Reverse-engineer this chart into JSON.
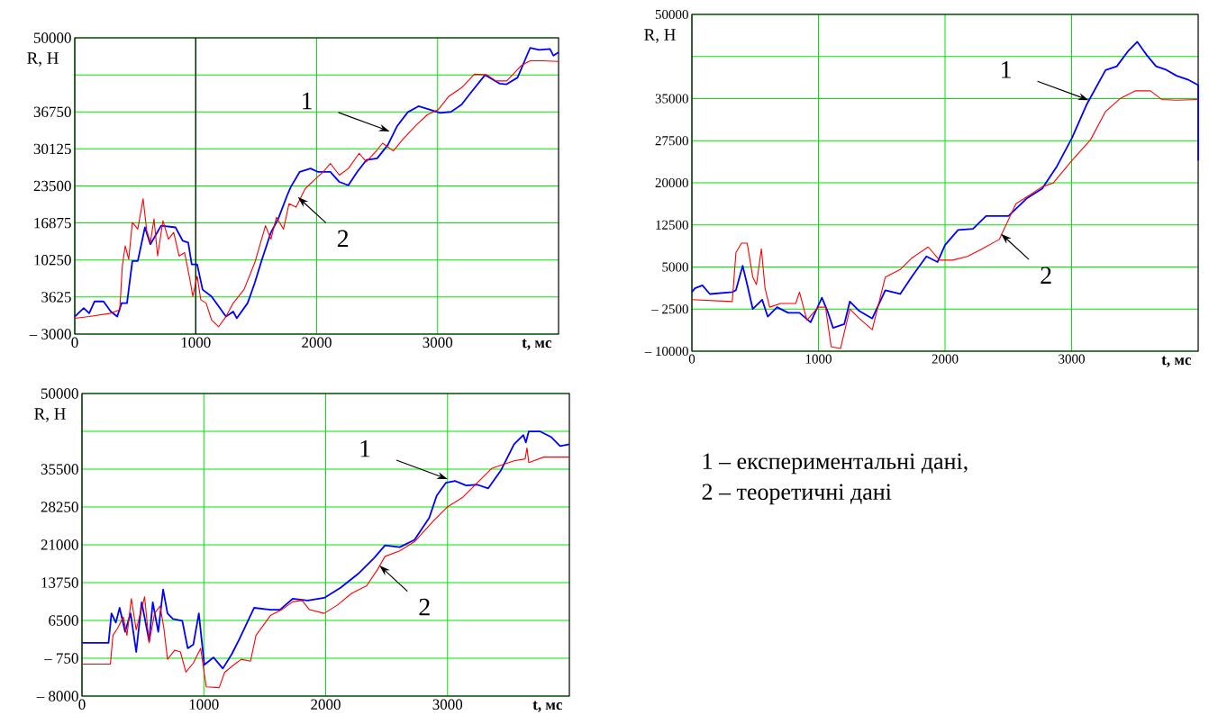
{
  "chart_data": [
    {
      "type": "line",
      "xlabel": "t, мс",
      "ylabel": "R, Н",
      "xlim": [
        0,
        4000
      ],
      "ylim": [
        -3000,
        50000
      ],
      "xticks": [
        0,
        1000,
        2000,
        3000
      ],
      "yticks": [
        {
          "value": -3000,
          "label": "– 3000"
        },
        3625,
        10250,
        16875,
        23500,
        30125,
        36750,
        {
          "value": 43375,
          "label": null
        },
        50000
      ],
      "grid": true,
      "series": [
        {
          "color": "#0000ff",
          "x": [
            0,
            74,
            119,
            164,
            238,
            298,
            351,
            387,
            432,
            476,
            521,
            580,
            625,
            714,
            833,
            893,
            938,
            967,
            1012,
            1057,
            1131,
            1190,
            1250,
            1310,
            1339,
            1429,
            1488,
            1548,
            1622,
            1682,
            1756,
            1786,
            1860,
            1949,
            2009,
            2113,
            2188,
            2262,
            2336,
            2411,
            2500,
            2589,
            2664,
            2753,
            2842,
            2932,
            3021,
            3110,
            3199,
            3274,
            3393,
            3452,
            3512,
            3571,
            3661,
            3765,
            3839,
            3929,
            3958,
            4000
          ],
          "values": [
            130,
            1640,
            730,
            2840,
            2840,
            1030,
            130,
            2540,
            2540,
            10070,
            10070,
            16090,
            13080,
            16390,
            16090,
            13680,
            13380,
            9460,
            9460,
            4950,
            3740,
            1940,
            130,
            1030,
            -170,
            2540,
            6150,
            10370,
            15190,
            17600,
            21810,
            23320,
            26030,
            26630,
            26030,
            26030,
            24220,
            23620,
            26030,
            28140,
            28440,
            30850,
            34160,
            36690,
            37770,
            37170,
            36570,
            36750,
            38070,
            40180,
            43370,
            42590,
            41810,
            41690,
            42890,
            48190,
            47830,
            48010,
            46810,
            47410
          ]
        },
        {
          "color": "#ff0000",
          "x": [
            0,
            119,
            298,
            372,
            393,
            417,
            446,
            476,
            521,
            565,
            595,
            625,
            655,
            685,
            729,
            774,
            818,
            863,
            908,
            952,
            976,
            1012,
            1042,
            1086,
            1131,
            1190,
            1250,
            1310,
            1399,
            1488,
            1577,
            1622,
            1667,
            1726,
            1771,
            1830,
            1905,
            1979,
            2054,
            2113,
            2188,
            2262,
            2351,
            2411,
            2500,
            2545,
            2634,
            2708,
            2827,
            2917,
            3006,
            3095,
            3199,
            3304,
            3408,
            3482,
            3571,
            3690,
            3765,
            3869,
            4000
          ],
          "values": [
            -170,
            130,
            730,
            1340,
            9160,
            12780,
            10370,
            16990,
            15790,
            21210,
            15490,
            13380,
            17600,
            10970,
            17300,
            13980,
            15190,
            10970,
            11580,
            6750,
            3740,
            7360,
            3140,
            2540,
            -470,
            -1680,
            130,
            2540,
            4950,
            9760,
            16390,
            13980,
            17900,
            15790,
            20310,
            19700,
            23020,
            24520,
            26030,
            27530,
            25430,
            26630,
            29340,
            27830,
            29940,
            31150,
            29760,
            31750,
            34460,
            36270,
            37170,
            39580,
            41090,
            43500,
            43370,
            42290,
            42290,
            45000,
            45900,
            45900,
            45780
          ]
        }
      ],
      "ref_lines": [
        {
          "axis": "x",
          "value": 1000,
          "color": "#000000"
        }
      ],
      "annotations": [
        {
          "text": "1",
          "x": 2604,
          "y": 33260
        },
        {
          "text": "2",
          "x": 1845,
          "y": 21510
        }
      ]
    },
    {
      "type": "line",
      "xlabel": "t, мс",
      "ylabel": "R, Н",
      "xlim": [
        0,
        4000
      ],
      "ylim": [
        -10000,
        50000
      ],
      "xticks": [
        0,
        1000,
        2000,
        3000
      ],
      "yticks": [
        {
          "value": -10000,
          "label": "– 10000"
        },
        {
          "value": -2500,
          "label": "– 2500"
        },
        5000,
        12500,
        20000,
        27500,
        35000,
        {
          "value": 42500,
          "label": null
        },
        50000
      ],
      "grid": true,
      "series": [
        {
          "color": "#0000ff",
          "x": [
            0,
            24,
            83,
            142,
            319,
            348,
            401,
            437,
            481,
            555,
            599,
            673,
            761,
            850,
            938,
            1027,
            1071,
            1115,
            1204,
            1248,
            1322,
            1425,
            1528,
            1646,
            1735,
            1853,
            1941,
            2000,
            2103,
            2221,
            2324,
            2501,
            2649,
            2767,
            2885,
            3003,
            3121,
            3268,
            3357,
            3445,
            3519,
            3593,
            3667,
            3740,
            3829,
            3917,
            4000,
            4000
          ],
          "values": [
            524,
            1200,
            1730,
            190,
            520,
            860,
            5220,
            1870,
            -2490,
            -820,
            -3830,
            -2160,
            -3160,
            -3160,
            -4840,
            -480,
            -2830,
            -5840,
            -5170,
            -1150,
            -2830,
            -4170,
            860,
            190,
            3210,
            6890,
            5890,
            8900,
            11590,
            11790,
            14070,
            14070,
            17280,
            18960,
            22980,
            28010,
            34040,
            40080,
            40750,
            43430,
            45110,
            42760,
            40750,
            40210,
            39070,
            38400,
            37400,
            23990
          ]
        },
        {
          "color": "#ff0000",
          "x": [
            0,
            319,
            348,
            392,
            437,
            481,
            510,
            549,
            578,
            614,
            702,
            820,
            850,
            909,
            997,
            1056,
            1100,
            1174,
            1248,
            1322,
            1425,
            1528,
            1646,
            1735,
            1867,
            1956,
            2059,
            2177,
            2295,
            2428,
            2560,
            2678,
            2767,
            2855,
            3003,
            3150,
            3268,
            3386,
            3504,
            3622,
            3711,
            3829,
            4000
          ],
          "values": [
            -820,
            -1150,
            7560,
            9240,
            9240,
            3210,
            1870,
            8240,
            1200,
            -2160,
            -1490,
            -1490,
            520,
            -4500,
            -2160,
            -2160,
            -9200,
            -9530,
            -2490,
            -4170,
            -6180,
            3210,
            4550,
            6560,
            8570,
            6220,
            6220,
            6890,
            8240,
            9910,
            16280,
            17960,
            19300,
            19970,
            23990,
            27680,
            32700,
            35050,
            36390,
            36390,
            34850,
            34710,
            34850
          ]
        }
      ],
      "annotations": [
        {
          "text": "1",
          "x": 3136,
          "y": 34710
        },
        {
          "text": "2",
          "x": 2442,
          "y": 10910
        }
      ]
    },
    {
      "type": "line",
      "xlabel": "t, мс",
      "ylabel": "R, Н",
      "xlim": [
        0,
        4000
      ],
      "ylim": [
        -8000,
        50000
      ],
      "xticks": [
        0,
        1000,
        2000,
        3000
      ],
      "yticks": [
        {
          "value": -8000,
          "label": "– 8000"
        },
        {
          "value": -750,
          "label": "– 750"
        },
        6500,
        13750,
        21000,
        28250,
        35500,
        {
          "value": 42750,
          "label": null
        },
        50000
      ],
      "grid": true,
      "series": [
        {
          "color": "#0000ff",
          "x": [
            0,
            218,
            242,
            278,
            309,
            354,
            399,
            445,
            490,
            551,
            581,
            626,
            666,
            702,
            747,
            823,
            868,
            914,
            959,
            1004,
            1080,
            1156,
            1231,
            1292,
            1413,
            1549,
            1625,
            1731,
            1852,
            1988,
            2124,
            2275,
            2396,
            2487,
            2608,
            2729,
            2850,
            2911,
            2986,
            3062,
            3153,
            3244,
            3334,
            3440,
            3546,
            3622,
            3643,
            3667,
            3758,
            3849,
            3924,
            4000
          ],
          "values": [
            2220,
            2220,
            7860,
            6090,
            8920,
            4330,
            7860,
            460,
            9970,
            2570,
            9970,
            4330,
            12440,
            7860,
            6800,
            6450,
            1160,
            1870,
            7860,
            -2010,
            -590,
            -2710,
            110,
            2930,
            8920,
            8560,
            8560,
            10680,
            10320,
            10820,
            12790,
            15610,
            18430,
            20900,
            20540,
            21950,
            26180,
            30410,
            32880,
            33230,
            32380,
            32520,
            31820,
            35340,
            40270,
            42040,
            40630,
            42740,
            42740,
            41680,
            39920,
            40270
          ]
        },
        {
          "color": "#ff0000",
          "x": [
            0,
            233,
            254,
            293,
            339,
            369,
            405,
            445,
            514,
            551,
            596,
            641,
            672,
            702,
            762,
            808,
            853,
            914,
            974,
            1020,
            1126,
            1171,
            1247,
            1307,
            1383,
            1428,
            1549,
            1640,
            1731,
            1807,
            1867,
            1988,
            2094,
            2215,
            2336,
            2427,
            2487,
            2608,
            2729,
            2880,
            3001,
            3122,
            3244,
            3365,
            3546,
            3637,
            3652,
            3667,
            3788,
            4000
          ],
          "values": [
            -1870,
            -1870,
            3630,
            5040,
            7160,
            3630,
            10680,
            4690,
            11030,
            2220,
            7860,
            9270,
            5040,
            -950,
            810,
            460,
            -3420,
            -1660,
            1160,
            -6240,
            -6380,
            -3420,
            -2010,
            -950,
            -1300,
            3630,
            7510,
            8560,
            10110,
            10320,
            8560,
            7860,
            9410,
            11730,
            13140,
            16320,
            18780,
            19840,
            21600,
            25480,
            28300,
            30060,
            32880,
            35690,
            37100,
            37460,
            39570,
            36750,
            37810,
            37810
          ]
        }
      ],
      "annotations": [
        {
          "text": "1",
          "x": 3002,
          "y": 33580
        },
        {
          "text": "2",
          "x": 2442,
          "y": 17020
        }
      ]
    },
    {
      "type": "other",
      "annotations": [
        "1 – експериментальні дані,",
        "2 – теоретичні дані"
      ]
    }
  ]
}
